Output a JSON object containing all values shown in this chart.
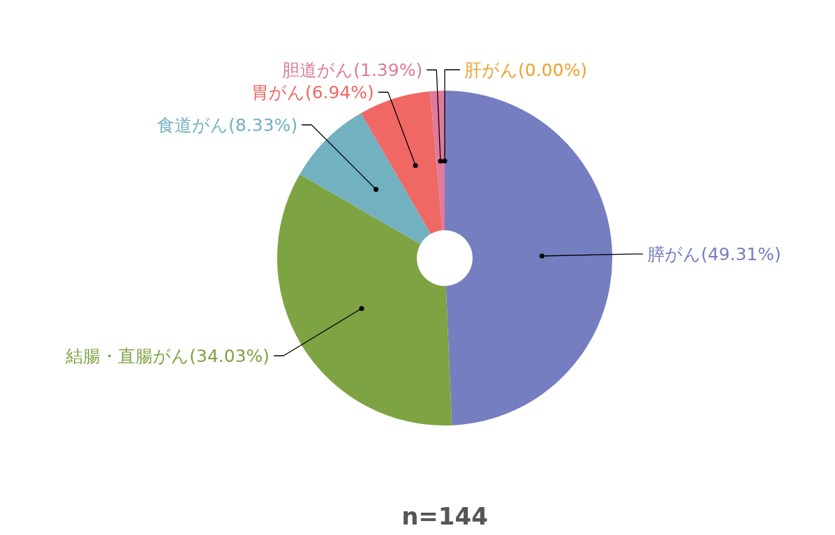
{
  "chart_data": {
    "type": "donut",
    "categories": [
      "膵がん",
      "結腸・直腸がん",
      "食道がん",
      "胃がん",
      "胆道がん",
      "肝がん"
    ],
    "values": [
      49.31,
      34.03,
      8.33,
      6.94,
      1.39,
      0.0
    ],
    "value_labels": [
      "(49.31%)",
      "(34.03%)",
      "(8.33%)",
      "(6.94%)",
      "(1.39%)",
      "(0.00%)"
    ],
    "colors": [
      "#757ec0",
      "#7ea343",
      "#72b1c0",
      "#ef6864",
      "#e07a9a",
      "#eea12f"
    ],
    "annotations": [
      "n=144"
    ]
  }
}
